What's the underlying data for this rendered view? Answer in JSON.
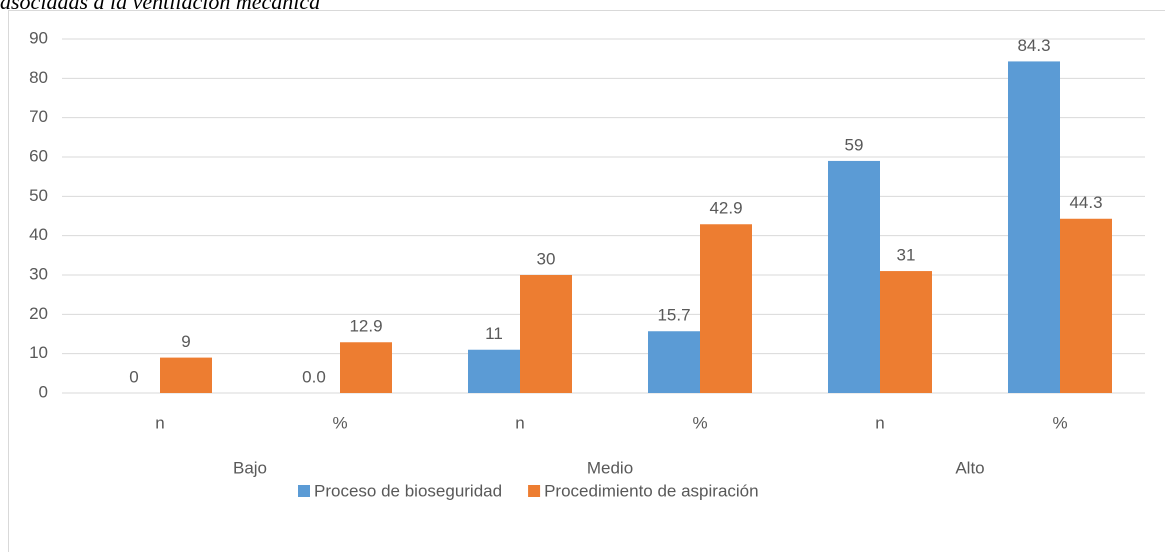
{
  "chart_data": {
    "type": "bar",
    "title": "asociadas a la ventilación mecánica",
    "categories": [
      "n",
      "%",
      "n",
      "%",
      "n",
      "%"
    ],
    "groups": [
      "Bajo",
      "Medio",
      "Alto"
    ],
    "series": [
      {
        "name": "Proceso de bioseguridad",
        "color": "#5b9bd5",
        "values": [
          0,
          0,
          11,
          15.7,
          59,
          84.3
        ],
        "value_labels": [
          "0",
          "0.0",
          "11",
          "15.7",
          "59",
          "84.3"
        ]
      },
      {
        "name": "Procedimiento de aspiración",
        "color": "#ed7d31",
        "values": [
          9,
          12.9,
          30,
          42.9,
          31,
          44.3
        ]
      }
    ],
    "ylim": [
      0,
      90
    ],
    "yticks": [
      0,
      10,
      20,
      30,
      40,
      50,
      60,
      70,
      80,
      90
    ],
    "grid": true,
    "legend": "bottom"
  }
}
